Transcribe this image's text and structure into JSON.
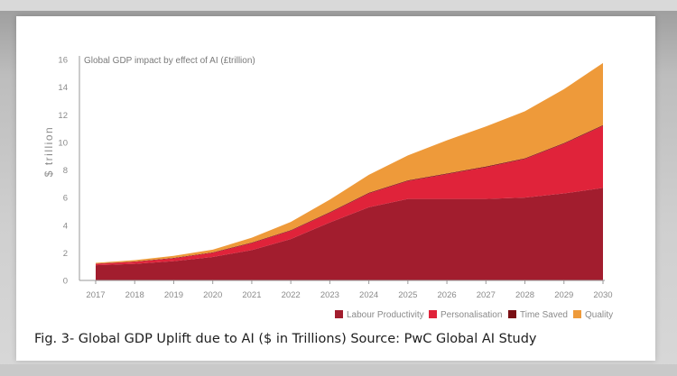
{
  "caption": "Fig. 3- Global GDP Uplift due to AI ($ in Trillions) Source: PwC Global AI Study",
  "chart_data": {
    "type": "area",
    "stacked": true,
    "title": "Global GDP impact by effect of AI (£trillion)",
    "ylabel": "$ trillion",
    "xlabel": "",
    "categories": [
      "2017",
      "2018",
      "2019",
      "2020",
      "2021",
      "2022",
      "2023",
      "2024",
      "2025",
      "2026",
      "2027",
      "2028",
      "2029",
      "2030"
    ],
    "ylim": [
      0,
      16
    ],
    "yticks": [
      0,
      2,
      4,
      6,
      8,
      10,
      12,
      14,
      16
    ],
    "grid": false,
    "legend_position": "bottom-right",
    "series": [
      {
        "name": "Labour Productivity",
        "color": "#a21d2e",
        "values": [
          1.1,
          1.2,
          1.4,
          1.7,
          2.2,
          3.0,
          4.2,
          5.3,
          5.9,
          5.9,
          5.9,
          6.0,
          6.3,
          6.7
        ]
      },
      {
        "name": "Personalisation",
        "color": "#e0233a",
        "values": [
          0.1,
          0.15,
          0.2,
          0.3,
          0.5,
          0.6,
          0.7,
          1.0,
          1.3,
          1.8,
          2.3,
          2.8,
          3.6,
          4.5
        ]
      },
      {
        "name": "Time Saved",
        "color": "#7a0f14",
        "values": [
          0.02,
          0.02,
          0.03,
          0.03,
          0.04,
          0.04,
          0.05,
          0.05,
          0.05,
          0.05,
          0.05,
          0.05,
          0.05,
          0.05
        ]
      },
      {
        "name": "Quality",
        "color": "#ee9a3a",
        "values": [
          0.05,
          0.1,
          0.15,
          0.2,
          0.35,
          0.6,
          0.9,
          1.3,
          1.8,
          2.4,
          2.9,
          3.4,
          3.9,
          4.5
        ]
      }
    ]
  }
}
